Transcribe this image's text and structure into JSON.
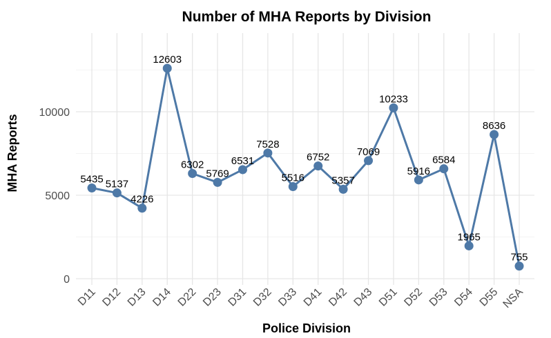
{
  "chart_data": {
    "type": "line",
    "title": "Number of MHA Reports by Division",
    "xlabel": "Police Division",
    "ylabel": "MHA Reports",
    "categories": [
      "D11",
      "D12",
      "D13",
      "D14",
      "D22",
      "D23",
      "D31",
      "D32",
      "D33",
      "D41",
      "D42",
      "D43",
      "D51",
      "D52",
      "D53",
      "D54",
      "D55",
      "NSA"
    ],
    "values": [
      5435,
      5137,
      4226,
      12603,
      6302,
      5769,
      6531,
      7528,
      5516,
      6752,
      5357,
      7069,
      10233,
      5916,
      6584,
      1965,
      8636,
      755
    ],
    "y_ticks": [
      0,
      5000,
      10000
    ],
    "ylim": [
      0,
      13000
    ],
    "grid": true,
    "color": "#4e79a7"
  }
}
